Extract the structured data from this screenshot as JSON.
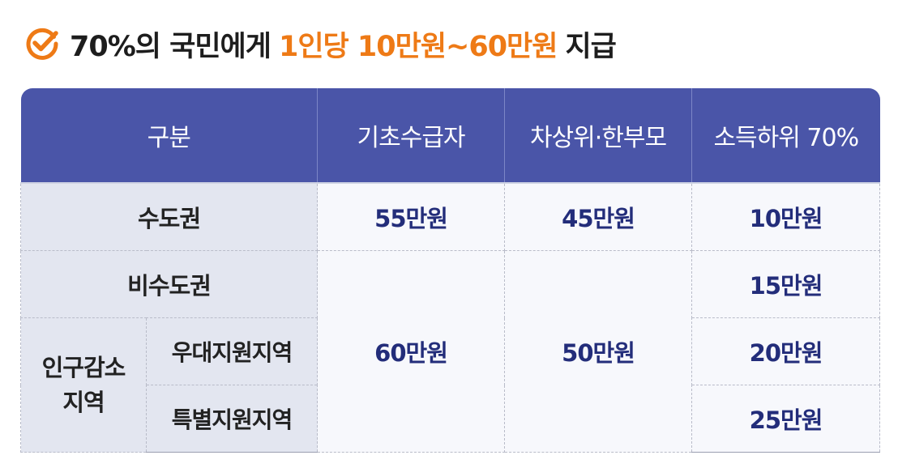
{
  "title": {
    "part1": "70%의 국민에게",
    "highlight": "1인당 10만원~60만원",
    "part2": "지급",
    "icon": "check-circle-icon",
    "accent_color": "#ee7a16"
  },
  "table": {
    "header_color": "#4a55a8",
    "headers": [
      "구분",
      "기초수급자",
      "차상위·한부모",
      "소득하위 70%"
    ],
    "rows": {
      "capital": {
        "label": "수도권",
        "basic": "55만원",
        "near_poor": "45만원",
        "lower70": "10만원"
      },
      "non_capital": {
        "label": "비수도권",
        "lower70": "15만원"
      },
      "merged_basic": "60만원",
      "merged_near_poor": "50만원",
      "depopulation": {
        "label_line1": "인구감소",
        "label_line2": "지역",
        "preferential": {
          "label": "우대지원지역",
          "lower70": "20만원"
        },
        "special": {
          "label": "특별지원지역",
          "lower70": "25만원"
        }
      }
    }
  }
}
